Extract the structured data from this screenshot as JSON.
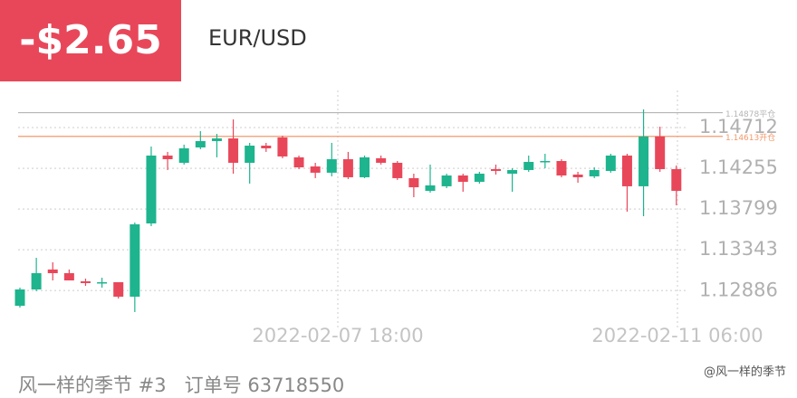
{
  "header": {
    "pnl": "-$2.65",
    "symbol": "EUR/USD"
  },
  "footer": {
    "account": "风一样的季节 #3",
    "order": "订单号 63718550",
    "watermark": "@风一样的季节"
  },
  "chart_data": {
    "type": "candlestick",
    "categories": [
      null,
      null,
      null,
      null,
      null,
      null,
      null,
      null,
      null,
      null,
      null,
      null,
      null,
      null,
      null,
      null,
      null,
      null,
      null,
      null,
      null,
      null,
      null,
      null,
      null,
      null,
      null,
      null,
      null,
      null,
      null,
      null,
      null,
      null,
      null,
      null,
      null,
      null,
      null,
      null,
      null
    ],
    "open": [
      1.12716,
      1.12899,
      1.13122,
      1.13081,
      1.1299,
      1.1297,
      1.1298,
      1.12818,
      1.13638,
      1.14398,
      1.14317,
      1.14489,
      1.1456,
      1.1459,
      1.14317,
      1.14509,
      1.14601,
      1.14378,
      1.14276,
      1.14206,
      1.14357,
      1.14155,
      1.14368,
      1.14317,
      1.14145,
      1.14003,
      1.14054,
      1.14175,
      1.14104,
      1.14246,
      1.14195,
      1.14236,
      1.14327,
      1.14337,
      1.14185,
      1.14165,
      1.14226,
      1.14398,
      1.14054,
      1.14611,
      1.14246
    ],
    "high": [
      1.12919,
      1.13253,
      1.13203,
      1.13122,
      1.1302,
      1.1303,
      1.1298,
      1.13648,
      1.14499,
      1.14439,
      1.1452,
      1.14672,
      1.14641,
      1.14803,
      1.1454,
      1.1454,
      1.14621,
      1.14398,
      1.14317,
      1.1454,
      1.14439,
      1.14398,
      1.14398,
      1.14337,
      1.14195,
      1.14297,
      1.14195,
      1.14195,
      1.14216,
      1.14297,
      1.14256,
      1.14398,
      1.14418,
      1.14357,
      1.14216,
      1.14266,
      1.14418,
      1.14418,
      1.14915,
      1.14722,
      1.14287
    ],
    "low": [
      1.12696,
      1.12879,
      1.13,
      1.13,
      1.12939,
      1.12919,
      1.12797,
      1.12646,
      1.13608,
      1.14236,
      1.14297,
      1.14469,
      1.14378,
      1.14195,
      1.14084,
      1.14439,
      1.14368,
      1.14246,
      1.14145,
      1.14165,
      1.14135,
      1.14145,
      1.14297,
      1.14125,
      1.13932,
      1.13983,
      1.14033,
      1.13993,
      1.14084,
      1.14185,
      1.13993,
      1.14216,
      1.14256,
      1.14155,
      1.14094,
      1.14145,
      1.14206,
      1.1377,
      1.13719,
      1.14216,
      1.13841
    ],
    "close": [
      1.12899,
      1.13081,
      1.13081,
      1.13,
      1.1297,
      1.1298,
      1.12818,
      1.13628,
      1.14398,
      1.14357,
      1.14479,
      1.1456,
      1.1459,
      1.14317,
      1.14509,
      1.14479,
      1.14388,
      1.14266,
      1.14206,
      1.14357,
      1.14155,
      1.14378,
      1.14317,
      1.14145,
      1.14043,
      1.14064,
      1.14175,
      1.14104,
      1.14195,
      1.14226,
      1.14236,
      1.14327,
      1.14337,
      1.14175,
      1.14155,
      1.14236,
      1.14398,
      1.14054,
      1.14611,
      1.14246,
      1.14003
    ],
    "up_color": "#1db48e",
    "down_color": "#e8475a",
    "ylim": [
      1.12443,
      1.15127
    ],
    "yticks": [
      1.14712,
      1.14255,
      1.13799,
      1.13343,
      1.12886
    ],
    "grid": true,
    "xtick_labels": [
      "2022-02-07 18:00",
      "2022-02-11 06:00"
    ],
    "lines": [
      {
        "value": 1.14878,
        "label": "1.14878平仓",
        "color": "#b5b5b5"
      },
      {
        "value": 1.14613,
        "label": "1.14613开仓",
        "color": "#f29a6c"
      }
    ]
  }
}
